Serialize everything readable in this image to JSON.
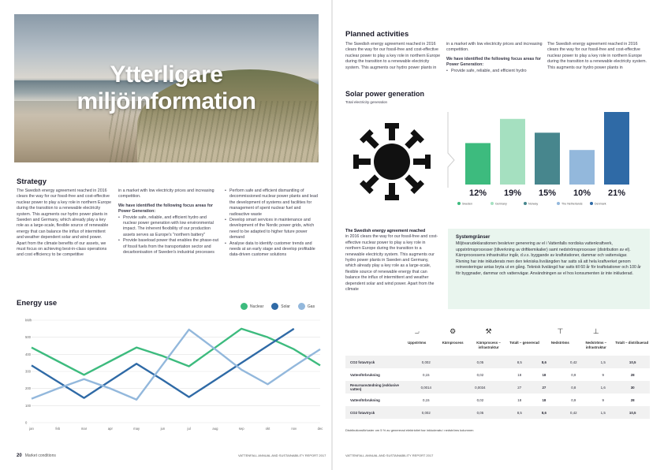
{
  "hero": {
    "title_line1": "Ytterligare",
    "title_line2": "miljöinformation"
  },
  "strategy": {
    "heading": "Strategy",
    "col1": "The Swedish energy agreement reached in 2016 clears the way for our fossil-free and cost-effective nuclear power to play a key role in northern Europe during the transition to a renewable electricity system. This augments our hydro power plants in Sweden and Germany, which already play a key role as a large-scale, flexible source of renewable energy that can balance the influx of intermittent and weather dependent solar and wind power. Apart from the climate benefits of our assets, we must focus on achieving best-in-class operations and cost efficiency to be competitive",
    "col2_intro": "in a market with low electricity prices and increasing competition.",
    "col2_subhead": "We have identified the following focus areas for Power Generation:",
    "col2_bullets": [
      "Provide safe, reliable, and efficient hydro and nuclear power generation with low environmental impact. The inherent flexibility of our production assets serves as Europe's \"northern battery\"",
      "Provide baseload power that enables the phase-out of fossil fuels from the transportation sector and decarbonisation of Sweden's industrial processes"
    ],
    "col3_bullets": [
      "Perform safe and efficient dismantling of decommissioned nuclear power plants and lead the development of systems and facilities for management of spent nuclear fuel and radioactive waste",
      "Develop smart services in maintenance and development of the Nordic power grids, which need to be adapted to higher future power demand",
      "Analyse data to identify customer trends and needs at an early stage and develop profitable data-driven customer solutions"
    ]
  },
  "energy_use": {
    "heading": "Energy use",
    "legend": [
      {
        "name": "Nuclear",
        "color": "#3dbb7e"
      },
      {
        "name": "Solar",
        "color": "#2f6aa6"
      },
      {
        "name": "Gas",
        "color": "#93b8dc"
      }
    ]
  },
  "planned": {
    "heading": "Planned activities",
    "col1": "The Swedish energy agreement reached in 2016 clears the way for our fossil-free and cost-effective nuclear power to play a key role in northern Europe during the transition to a renewable electricity system. This augments our hydro power plants in",
    "col2_intro": "in a market with low electricity prices and increasing competition.",
    "col2_subhead": "We have identified the following focus areas for Power Generation:",
    "col2_bullet": "Provide safe, reliable, and efficient hydro",
    "col3": "The Swedish energy agreement reached in 2016 clears the way for our fossil-free and cost-effective nuclear power to play a key role in northern Europe during the transition to a renewable electricity system. This augments our hydro power plants in"
  },
  "solar": {
    "heading": "Solar power generation",
    "subheading": "Total electricity generation"
  },
  "lower_left_text": {
    "lead": "The Swedish energy agreement reached",
    "body": "in 2016 clears the way for our fossil-free and cost-effective nuclear power to play a key role in northern Europe during the transition to a renewable electricity system. This augments our hydro power plants in Sweden and Germany, which already play a key role as a large-scale, flexible source of renewable energy that can balance the influx of intermittent and weather dependent solar and wind power. Apart from the climate"
  },
  "info_box": {
    "title": "Systemgränser",
    "text": "Miljövarudeklarationen beskriver generering av el i Vattenfalls nordiska vattenkraftverk, uppströmsprocesser (tillverkning av driftkemikalier) samt nedströmsprocesser (distribution av el). Kärnprocessens infrastruktur ingår, d.v.s. byggande av kraftstationer, dammar och vattenvägar. Rivning har inte inkluderats men den tekniska livslängden har satts så att hela kraftverket genom reinvesteringar antas bryta ut en gång. Teknisk livslängd har satts till 60 år för kraftstationer och 100 år för byggnader, dammar och vattenvägar. Användningen av el hos konsumenten är inte inkluderad."
  },
  "impact_table": {
    "columns": [
      {
        "icon": "upstream-icon",
        "label": "Uppströms"
      },
      {
        "icon": "core-process-icon",
        "label": "Kärnprocess"
      },
      {
        "icon": "core-infrastructure-icon",
        "label": "Kärnprocess – infrastruktur"
      },
      {
        "icon": "total-generated-icon",
        "label": "Totalt – genererad"
      },
      {
        "icon": "downstream-icon",
        "label": "Nedströms"
      },
      {
        "icon": "downstream-infrastructure-icon",
        "label": "Nedströms – infrastruktur"
      },
      {
        "icon": "total-distributed-icon",
        "label": "Totalt – distribuerad"
      }
    ],
    "rows": [
      {
        "label": "CO2 fotavtryck",
        "values": [
          "0,002",
          "0,05",
          "8,5",
          "8,6",
          "0,42",
          "1,5",
          "10,5"
        ]
      },
      {
        "label": "Vattenförbrukning",
        "values": [
          "0,15",
          "0,02",
          "18",
          "18",
          "0,9",
          "9",
          "28"
        ]
      },
      {
        "label": "Resursanvändning (exklusive vatten)",
        "values": [
          "0,0014",
          "0,0034",
          "27",
          "27",
          "0,8",
          "1,6",
          "30"
        ]
      },
      {
        "label": "Vattenförbrukning",
        "values": [
          "0,15",
          "0,02",
          "18",
          "18",
          "0,9",
          "9",
          "28"
        ]
      },
      {
        "label": "CO2 fotavtryck",
        "values": [
          "0,002",
          "0,05",
          "8,5",
          "8,6",
          "0,42",
          "1,5",
          "10,5"
        ]
      }
    ],
    "footnote": "Distributionsförluster om 5 % av genererad elektricitet har inkluderats i nedströms kolumnen"
  },
  "footer": {
    "left_page_number": "20",
    "left_section": "Market conditions",
    "left_report": "VATTENFALL ANNUAL AND SUSTAINABILITY REPORT 2017",
    "right_report": "VATTENFALL ANNUAL AND SUSTAINABILITY REPORT 2017"
  },
  "chart_data": [
    {
      "type": "line",
      "x": [
        "jan",
        "feb",
        "mar",
        "apr",
        "may",
        "jun",
        "jul",
        "aug",
        "sep",
        "okt",
        "nov",
        "dec"
      ],
      "y_ticks": [
        "0",
        "100",
        "200",
        "300",
        "400",
        "500",
        "kWh"
      ],
      "ylim": [
        0,
        600
      ],
      "grid": true,
      "series": [
        {
          "name": "Nuclear",
          "color": "#3dbb7e",
          "values": [
            440,
            360,
            280,
            360,
            440,
            390,
            330,
            440,
            550,
            500,
            430,
            335
          ]
        },
        {
          "name": "Solar",
          "color": "#2f6aa6",
          "values": [
            335,
            240,
            145,
            245,
            345,
            250,
            150,
            250,
            350,
            450,
            550,
            null
          ]
        },
        {
          "name": "Gas",
          "color": "#93b8dc",
          "values": [
            140,
            200,
            255,
            200,
            135,
            340,
            545,
            430,
            310,
            225,
            330,
            430
          ]
        }
      ]
    },
    {
      "type": "bar",
      "title": "Solar power generation",
      "subtitle": "Total electricity generation",
      "categories": [
        "Sweden",
        "Germany",
        "Norway",
        "The Netherlands",
        "Denmark"
      ],
      "values": [
        12,
        19,
        15,
        10,
        21
      ],
      "value_labels": [
        "12%",
        "19%",
        "15%",
        "10%",
        "21%"
      ],
      "colors": [
        "#3dbb7e",
        "#a5e0c0",
        "#47868d",
        "#93b8dc",
        "#2f6aa6"
      ]
    }
  ]
}
